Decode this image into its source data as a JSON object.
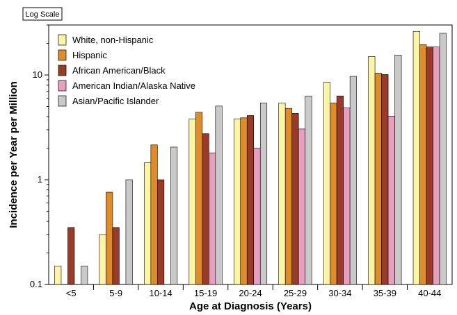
{
  "scale_label": "Log Scale",
  "chart_data": {
    "type": "bar",
    "yscale": "log",
    "ylim": [
      0.1,
      30
    ],
    "yticks": [
      0.1,
      1,
      10
    ],
    "ytick_labels": [
      "0.1",
      "1",
      "10"
    ],
    "xlabel": "Age at Diagnosis (Years)",
    "ylabel": "Incidence per Year per Million",
    "categories": [
      "<5",
      "5-9",
      "10-14",
      "15-19",
      "20-24",
      "25-29",
      "30-34",
      "35-39",
      "40-44"
    ],
    "legend_position": "top-left",
    "series": [
      {
        "name": "White, non-Hispanic",
        "color": "#fdf5a6",
        "values": [
          0.15,
          0.3,
          1.45,
          3.8,
          3.8,
          5.4,
          8.5,
          15.0,
          26.0
        ]
      },
      {
        "name": "Hispanic",
        "color": "#df8c2a",
        "values": [
          null,
          0.76,
          2.15,
          4.4,
          3.9,
          4.8,
          5.4,
          10.4,
          19.5
        ]
      },
      {
        "name": "African American/Black",
        "color": "#9a3a28",
        "values": [
          0.35,
          0.35,
          1.0,
          2.75,
          4.1,
          4.3,
          6.3,
          10.1,
          18.5
        ]
      },
      {
        "name": "American Indian/Alaska Native",
        "color": "#e79fbf",
        "values": [
          null,
          null,
          null,
          1.8,
          2.0,
          3.05,
          4.85,
          4.05,
          18.5
        ]
      },
      {
        "name": "Asian/Pacific Islander",
        "color": "#c9c9c9",
        "values": [
          0.15,
          1.0,
          2.05,
          5.05,
          5.4,
          6.3,
          9.7,
          15.5,
          25.0
        ]
      }
    ]
  }
}
